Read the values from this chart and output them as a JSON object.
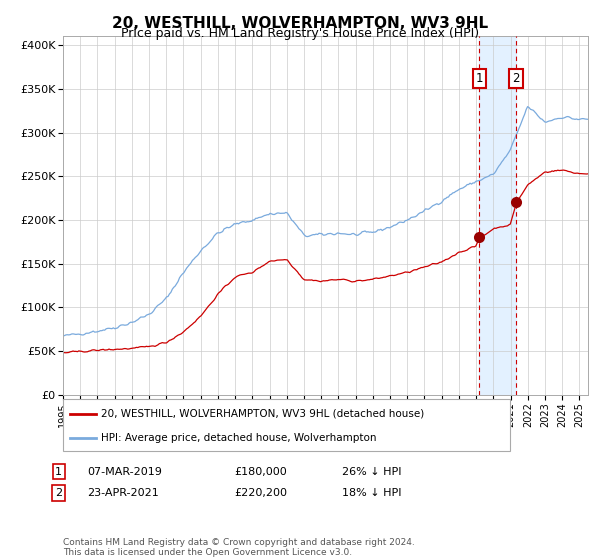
{
  "title": "20, WESTHILL, WOLVERHAMPTON, WV3 9HL",
  "subtitle": "Price paid vs. HM Land Registry's House Price Index (HPI)",
  "title_fontsize": 11,
  "subtitle_fontsize": 9,
  "ylim": [
    0,
    410000
  ],
  "xlim_start": 1995.0,
  "xlim_end": 2025.5,
  "hpi_color": "#7aaadd",
  "price_color": "#cc0000",
  "point1_date": 2019.18,
  "point1_value": 180000,
  "point2_date": 2021.31,
  "point2_value": 220200,
  "point1_label": "07-MAR-2019",
  "point1_price": "£180,000",
  "point1_pct": "26% ↓ HPI",
  "point2_label": "23-APR-2021",
  "point2_price": "£220,200",
  "point2_pct": "18% ↓ HPI",
  "legend1": "20, WESTHILL, WOLVERHAMPTON, WV3 9HL (detached house)",
  "legend2": "HPI: Average price, detached house, Wolverhampton",
  "footer": "Contains HM Land Registry data © Crown copyright and database right 2024.\nThis data is licensed under the Open Government Licence v3.0.",
  "background_color": "#ffffff",
  "grid_color": "#cccccc",
  "ytick_labels": [
    "0",
    "50K",
    "100K",
    "150K",
    "200K",
    "250K",
    "300K",
    "350K",
    "400K"
  ],
  "ytick_values": [
    0,
    50000,
    100000,
    150000,
    200000,
    250000,
    300000,
    350000,
    400000
  ]
}
